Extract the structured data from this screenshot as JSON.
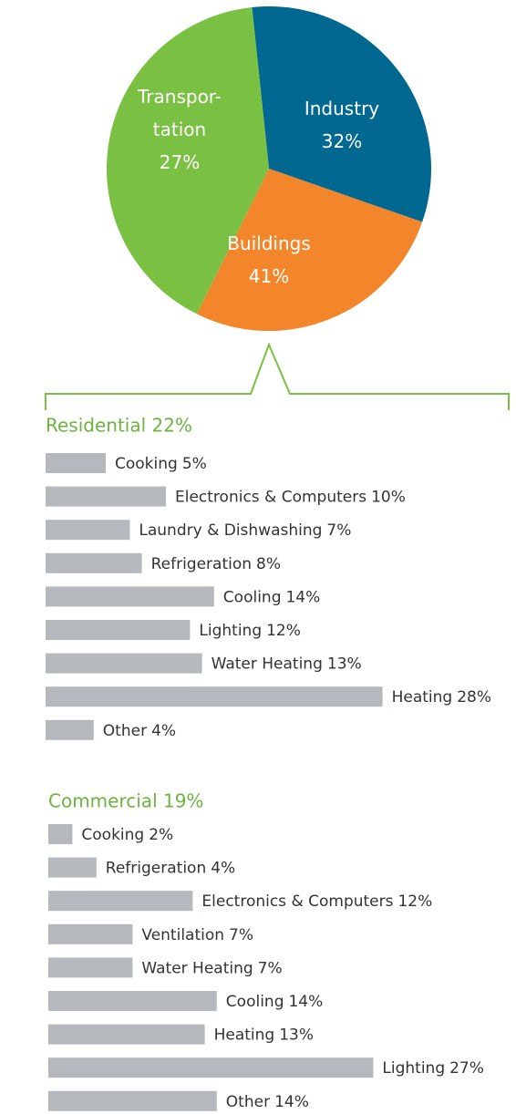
{
  "chart_data": [
    {
      "type": "pie",
      "categories": [
        "Industry",
        "Transpor-\ntation",
        "Buildings"
      ],
      "values": [
        32,
        27,
        41
      ],
      "value_labels": [
        "32%",
        "27%",
        "41%"
      ],
      "colors": [
        "#006891",
        "#f3862a",
        "#7ac143"
      ]
    },
    {
      "type": "barh",
      "title": "Residential 22%",
      "color": "#b5b9bd",
      "categories": [
        "Cooking",
        "Electronics & Computers",
        "Laundry & Dishwashing",
        "Refrigeration",
        "Cooling",
        "Lighting",
        "Water Heating",
        "Heating",
        "Other"
      ],
      "values": [
        5,
        10,
        7,
        8,
        14,
        12,
        13,
        28,
        4
      ],
      "value_labels": [
        "5%",
        "10%",
        "7%",
        "8%",
        "14%",
        "12%",
        "13%",
        "28%",
        "4%"
      ]
    },
    {
      "type": "barh",
      "title": "Commercial 19%",
      "color": "#b5b9bd",
      "categories": [
        "Cooking",
        "Refrigeration",
        "Electronics & Computers",
        "Ventilation",
        "Water Heating",
        "Cooling",
        "Heating",
        "Lighting",
        "Other"
      ],
      "values": [
        2,
        4,
        12,
        7,
        7,
        14,
        13,
        27,
        14
      ],
      "value_labels": [
        "2%",
        "4%",
        "12%",
        "7%",
        "7%",
        "14%",
        "13%",
        "27%",
        "14%"
      ]
    }
  ]
}
